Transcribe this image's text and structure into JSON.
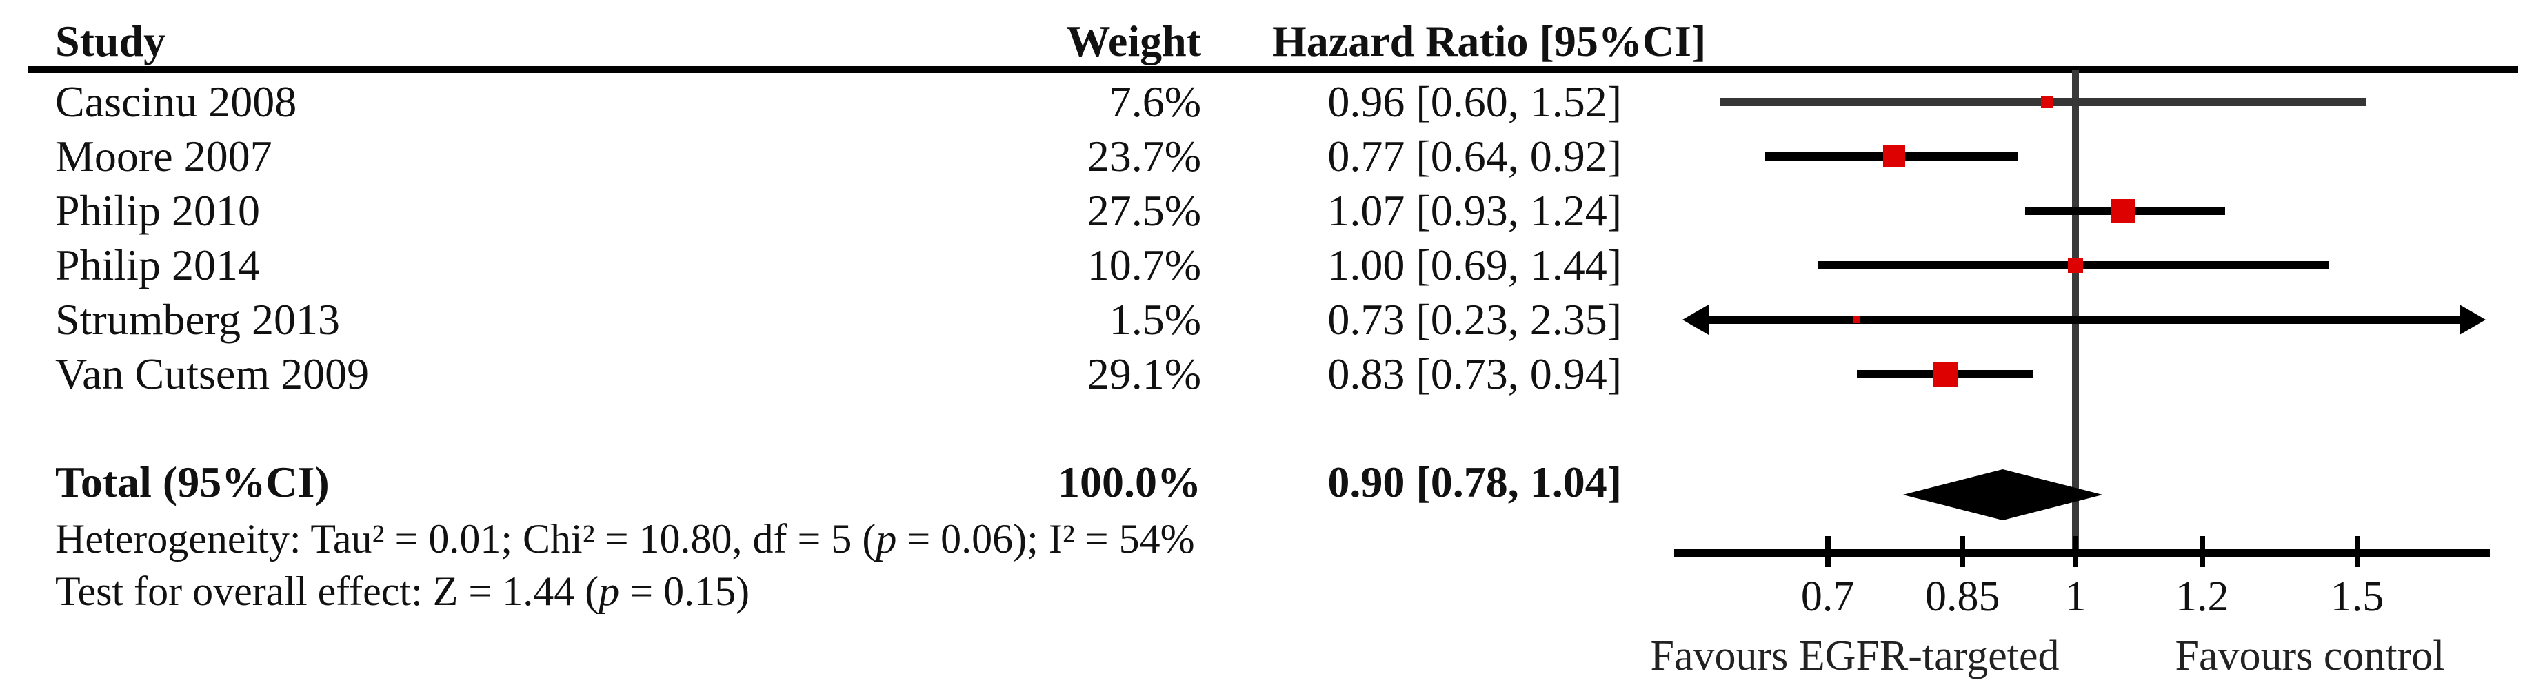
{
  "table": {
    "headers": {
      "study": "Study",
      "weight": "Weight",
      "hazard_ratio": "Hazard Ratio [95%CI]"
    },
    "rows": [
      {
        "study": "Cascinu 2008",
        "weight": "7.6%",
        "hr": "0.96 [0.60, 1.52]"
      },
      {
        "study": "Moore 2007",
        "weight": "23.7%",
        "hr": "0.77 [0.64, 0.92]"
      },
      {
        "study": "Philip 2010",
        "weight": "27.5%",
        "hr": "1.07 [0.93, 1.24]"
      },
      {
        "study": "Philip 2014",
        "weight": "10.7%",
        "hr": "1.00 [0.69, 1.44]"
      },
      {
        "study": "Strumberg 2013",
        "weight": "1.5%",
        "hr": "0.73 [0.23, 2.35]"
      },
      {
        "study": "Van Cutsem 2009",
        "weight": "29.1%",
        "hr": "0.83 [0.73, 0.94]"
      }
    ],
    "total": {
      "study": "Total (95%CI)",
      "weight": "100.0%",
      "hr": "0.90 [0.78, 1.04]"
    },
    "heterogeneity": {
      "pre": "Heterogeneity: Tau² = 0.01; Chi² = 10.80, df = 5 (",
      "p_symbol": "p",
      "post": " = 0.06); I² = 54%"
    },
    "overall_effect": {
      "pre": "Test for overall effect: Z = 1.44 (",
      "p_symbol": "p",
      "post": " = 0.15)"
    }
  },
  "chart_data": {
    "type": "forest",
    "effect_measure": "Hazard Ratio",
    "scale": "log",
    "x_axis": {
      "tick_values": [
        0.7,
        0.85,
        1,
        1.2,
        1.5
      ],
      "tick_labels": [
        "0.7",
        "0.85",
        "1",
        "1.2",
        "1.5"
      ],
      "range": [
        0.56,
        1.82
      ],
      "reference_line": 1
    },
    "studies": [
      {
        "study": "Cascinu 2008",
        "weight_pct": 7.6,
        "hr": 0.96,
        "ci_low": 0.6,
        "ci_high": 1.52
      },
      {
        "study": "Moore 2007",
        "weight_pct": 23.7,
        "hr": 0.77,
        "ci_low": 0.64,
        "ci_high": 0.92
      },
      {
        "study": "Philip 2010",
        "weight_pct": 27.5,
        "hr": 1.07,
        "ci_low": 0.93,
        "ci_high": 1.24
      },
      {
        "study": "Philip 2014",
        "weight_pct": 10.7,
        "hr": 1.0,
        "ci_low": 0.69,
        "ci_high": 1.44
      },
      {
        "study": "Strumberg 2013",
        "weight_pct": 1.5,
        "hr": 0.73,
        "ci_low": 0.23,
        "ci_high": 2.35
      },
      {
        "study": "Van Cutsem 2009",
        "weight_pct": 29.1,
        "hr": 0.83,
        "ci_low": 0.73,
        "ci_high": 0.94
      }
    ],
    "total": {
      "label": "Total (95%CI)",
      "weight_pct": 100.0,
      "hr": 0.9,
      "ci_low": 0.78,
      "ci_high": 1.04
    },
    "heterogeneity": {
      "tau2": 0.01,
      "chi2": 10.8,
      "df": 5,
      "p": 0.06,
      "i2_pct": 54
    },
    "overall_effect": {
      "z": 1.44,
      "p": 0.15
    },
    "favours": {
      "left": "Favours EGFR-targeted",
      "right": "Favours control"
    },
    "legend_position": "none",
    "grid": false
  },
  "style": {
    "marker_color": "#de0101",
    "ci_line_color": "#000000",
    "first_row_ci_color": "#363636",
    "reference_line_color": "#3a3a3a",
    "axis_color": "#000000",
    "text_color": "#111111"
  }
}
